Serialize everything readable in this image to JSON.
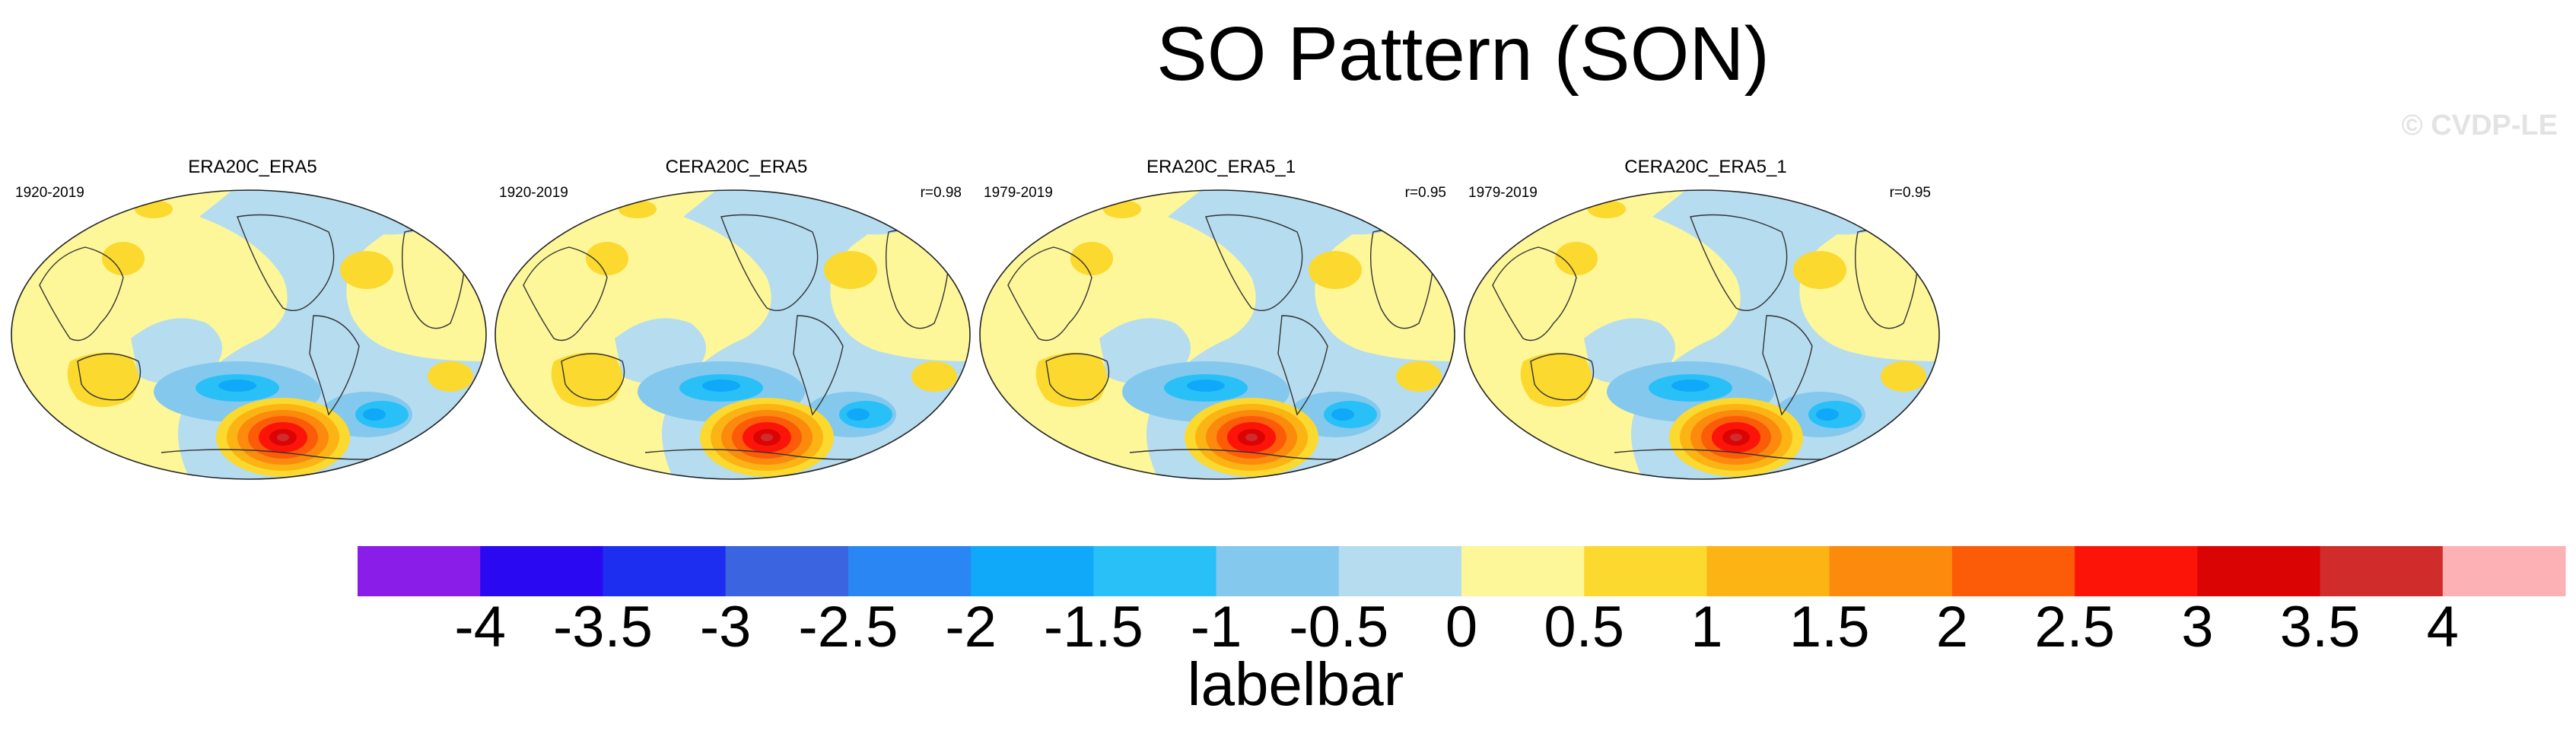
{
  "title": "SO Pattern (SON)",
  "watermark": "© CVDP-LE",
  "panels": [
    {
      "title": "ERA20C_ERA5",
      "period": "1920-2019",
      "corr": ""
    },
    {
      "title": "CERA20C_ERA5",
      "period": "1920-2019",
      "corr": "r=0.98"
    },
    {
      "title": "ERA20C_ERA5_1",
      "period": "1979-2019",
      "corr": "r=0.95"
    },
    {
      "title": "CERA20C_ERA5_1",
      "period": "1979-2019",
      "corr": "r=0.95"
    }
  ],
  "chart_data": {
    "type": "heatmap",
    "title": "SO Pattern (SON)",
    "map_projection": "global map panels",
    "labelbar": {
      "label": "labelbar",
      "ticks": [
        "-4",
        "-3.5",
        "-3",
        "-2.5",
        "-2",
        "-1.5",
        "-1",
        "-0.5",
        "0",
        "0.5",
        "1",
        "1.5",
        "2",
        "2.5",
        "3",
        "3.5",
        "4"
      ],
      "colors": [
        "#8a1ee8",
        "#2a08f2",
        "#1e2ef0",
        "#3a64e0",
        "#2a86f2",
        "#10a8f8",
        "#28c0f6",
        "#84c8ee",
        "#b6dcf0",
        "#fdf79a",
        "#fcd92e",
        "#fcb314",
        "#fc8a0c",
        "#fc5c08",
        "#fc1408",
        "#da0404",
        "#d02c2c",
        "#fcb2b4"
      ]
    }
  }
}
